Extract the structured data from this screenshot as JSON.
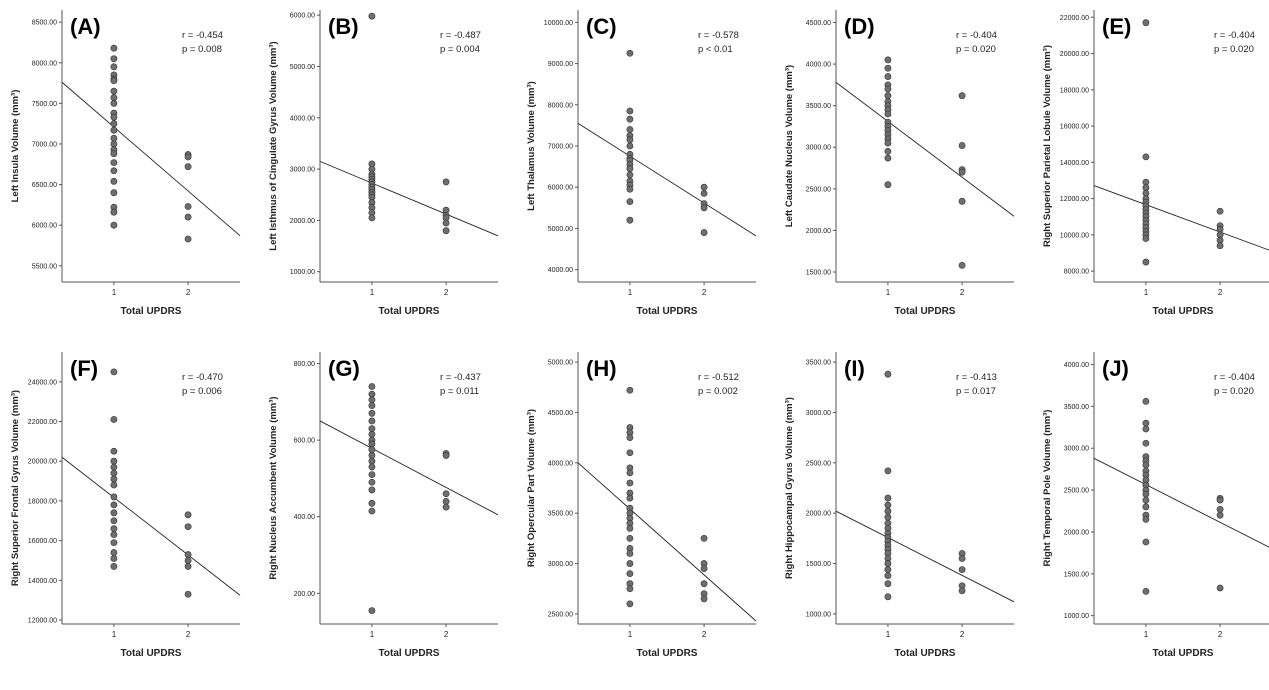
{
  "chart_data": [
    {
      "type": "scatter",
      "letter": "(A)",
      "ylabel": "Left Insula Volume (mm³)",
      "xlabel": "Total UPDRS",
      "r_text": "r = -0.454",
      "p_text": "p = 0.008",
      "x_ticks": [
        "1",
        "2"
      ],
      "x_range": [
        0.3,
        2.7
      ],
      "ylim": [
        5300,
        8650
      ],
      "y_ticks": [
        "5500.00",
        "6000.00",
        "6500.00",
        "7000.00",
        "7500.00",
        "8000.00",
        "8500.00"
      ],
      "fit": [
        [
          0.3,
          7760
        ],
        [
          2.7,
          5870
        ]
      ],
      "points": [
        [
          1,
          8180
        ],
        [
          1,
          8050
        ],
        [
          1,
          7950
        ],
        [
          1,
          7850
        ],
        [
          1,
          7800
        ],
        [
          1,
          7780
        ],
        [
          1,
          7650
        ],
        [
          1,
          7570
        ],
        [
          1,
          7500
        ],
        [
          1,
          7380
        ],
        [
          1,
          7330
        ],
        [
          1,
          7250
        ],
        [
          1,
          7170
        ],
        [
          1,
          7070
        ],
        [
          1,
          7000
        ],
        [
          1,
          6930
        ],
        [
          1,
          6880
        ],
        [
          1,
          6770
        ],
        [
          1,
          6670
        ],
        [
          1,
          6540
        ],
        [
          1,
          6400
        ],
        [
          1,
          6220
        ],
        [
          1,
          6160
        ],
        [
          1,
          6000
        ],
        [
          2,
          6870
        ],
        [
          2,
          6840
        ],
        [
          2,
          6720
        ],
        [
          2,
          6230
        ],
        [
          2,
          6100
        ],
        [
          2,
          5830
        ]
      ]
    },
    {
      "type": "scatter",
      "letter": "(B)",
      "ylabel": "Left Isthmus of Cingulate Gyrus Volume (mm³)",
      "xlabel": "Total UPDRS",
      "r_text": "r = -0.487",
      "p_text": "p = 0.004",
      "x_ticks": [
        "1",
        "2"
      ],
      "x_range": [
        0.3,
        2.7
      ],
      "ylim": [
        800,
        6100
      ],
      "y_ticks": [
        "1000.00",
        "2000.00",
        "3000.00",
        "4000.00",
        "5000.00",
        "6000.00"
      ],
      "fit": [
        [
          0.3,
          3150
        ],
        [
          2.7,
          1700
        ]
      ],
      "points": [
        [
          1,
          5980
        ],
        [
          1,
          3100
        ],
        [
          1,
          3000
        ],
        [
          1,
          2900
        ],
        [
          1,
          2850
        ],
        [
          1,
          2800
        ],
        [
          1,
          2750
        ],
        [
          1,
          2700
        ],
        [
          1,
          2650
        ],
        [
          1,
          2600
        ],
        [
          1,
          2550
        ],
        [
          1,
          2500
        ],
        [
          1,
          2450
        ],
        [
          1,
          2350
        ],
        [
          1,
          2250
        ],
        [
          1,
          2150
        ],
        [
          1,
          2050
        ],
        [
          2,
          2750
        ],
        [
          2,
          2200
        ],
        [
          2,
          2100
        ],
        [
          2,
          2050
        ],
        [
          2,
          1950
        ],
        [
          2,
          1800
        ]
      ]
    },
    {
      "type": "scatter",
      "letter": "(C)",
      "ylabel": "Left Thalamus Volume (mm³)",
      "xlabel": "Total UPDRS",
      "r_text": "r = -0.578",
      "p_text": "p < 0.01",
      "x_ticks": [
        "1",
        "2"
      ],
      "x_range": [
        0.3,
        2.7
      ],
      "ylim": [
        3700,
        10300
      ],
      "y_ticks": [
        "4000.00",
        "5000.00",
        "6000.00",
        "7000.00",
        "8000.00",
        "9000.00",
        "10000.00"
      ],
      "fit": [
        [
          0.3,
          7550
        ],
        [
          2.7,
          4820
        ]
      ],
      "points": [
        [
          1,
          9250
        ],
        [
          1,
          7850
        ],
        [
          1,
          7650
        ],
        [
          1,
          7400
        ],
        [
          1,
          7250
        ],
        [
          1,
          7150
        ],
        [
          1,
          7000
        ],
        [
          1,
          6800
        ],
        [
          1,
          6700
        ],
        [
          1,
          6650
        ],
        [
          1,
          6550
        ],
        [
          1,
          6450
        ],
        [
          1,
          6300
        ],
        [
          1,
          6150
        ],
        [
          1,
          6050
        ],
        [
          1,
          5950
        ],
        [
          1,
          5650
        ],
        [
          1,
          5200
        ],
        [
          2,
          6000
        ],
        [
          2,
          5850
        ],
        [
          2,
          5600
        ],
        [
          2,
          5500
        ],
        [
          2,
          4900
        ]
      ]
    },
    {
      "type": "scatter",
      "letter": "(D)",
      "ylabel": "Left Caudate Nucleus Volume (mm³)",
      "xlabel": "Total UPDRS",
      "r_text": "r = -0.404",
      "p_text": "p = 0.020",
      "x_ticks": [
        "1",
        "2"
      ],
      "x_range": [
        0.3,
        2.7
      ],
      "ylim": [
        1380,
        4650
      ],
      "y_ticks": [
        "1500.00",
        "2000.00",
        "2500.00",
        "3000.00",
        "3500.00",
        "4000.00",
        "4500.00"
      ],
      "fit": [
        [
          0.3,
          3780
        ],
        [
          2.7,
          2170
        ]
      ],
      "points": [
        [
          1,
          4050
        ],
        [
          1,
          3950
        ],
        [
          1,
          3850
        ],
        [
          1,
          3750
        ],
        [
          1,
          3700
        ],
        [
          1,
          3620
        ],
        [
          1,
          3550
        ],
        [
          1,
          3500
        ],
        [
          1,
          3450
        ],
        [
          1,
          3400
        ],
        [
          1,
          3300
        ],
        [
          1,
          3250
        ],
        [
          1,
          3200
        ],
        [
          1,
          3150
        ],
        [
          1,
          3100
        ],
        [
          1,
          3050
        ],
        [
          1,
          2950
        ],
        [
          1,
          2870
        ],
        [
          1,
          2550
        ],
        [
          2,
          3620
        ],
        [
          2,
          3020
        ],
        [
          2,
          2730
        ],
        [
          2,
          2700
        ],
        [
          2,
          2350
        ],
        [
          2,
          1580
        ]
      ]
    },
    {
      "type": "scatter",
      "letter": "(E)",
      "ylabel": "Right Superior Parietal Lobule Volume (mm³)",
      "xlabel": "Total UPDRS",
      "r_text": "r = -0.404",
      "p_text": "p = 0.020",
      "x_ticks": [
        "1",
        "2"
      ],
      "x_range": [
        0.3,
        2.7
      ],
      "ylim": [
        7400,
        22400
      ],
      "y_ticks": [
        "8000.00",
        "10000.00",
        "12000.00",
        "14000.00",
        "16000.00",
        "18000.00",
        "20000.00",
        "22000.00"
      ],
      "fit": [
        [
          0.3,
          12720
        ],
        [
          2.7,
          9100
        ]
      ],
      "points": [
        [
          1,
          21700
        ],
        [
          1,
          14300
        ],
        [
          1,
          12900
        ],
        [
          1,
          12600
        ],
        [
          1,
          12300
        ],
        [
          1,
          12000
        ],
        [
          1,
          11800
        ],
        [
          1,
          11600
        ],
        [
          1,
          11400
        ],
        [
          1,
          11200
        ],
        [
          1,
          11000
        ],
        [
          1,
          10800
        ],
        [
          1,
          10600
        ],
        [
          1,
          10400
        ],
        [
          1,
          10200
        ],
        [
          1,
          10000
        ],
        [
          1,
          9800
        ],
        [
          1,
          8500
        ],
        [
          2,
          11300
        ],
        [
          2,
          10500
        ],
        [
          2,
          10300
        ],
        [
          2,
          10000
        ],
        [
          2,
          9700
        ],
        [
          2,
          9400
        ]
      ]
    },
    {
      "type": "scatter",
      "letter": "(F)",
      "ylabel": "Right Superior Frontal Gyrus Volume (mm³)",
      "xlabel": "Total UPDRS",
      "r_text": "r = -0.470",
      "p_text": "p = 0.006",
      "x_ticks": [
        "1",
        "2"
      ],
      "x_range": [
        0.3,
        2.7
      ],
      "ylim": [
        11800,
        25500
      ],
      "y_ticks": [
        "12000.00",
        "14000.00",
        "16000.00",
        "18000.00",
        "20000.00",
        "22000.00",
        "24000.00"
      ],
      "fit": [
        [
          0.3,
          20200
        ],
        [
          2.7,
          13250
        ]
      ],
      "points": [
        [
          1,
          24500
        ],
        [
          1,
          22100
        ],
        [
          1,
          20500
        ],
        [
          1,
          20000
        ],
        [
          1,
          19700
        ],
        [
          1,
          19400
        ],
        [
          1,
          19100
        ],
        [
          1,
          18800
        ],
        [
          1,
          18200
        ],
        [
          1,
          17800
        ],
        [
          1,
          17400
        ],
        [
          1,
          17000
        ],
        [
          1,
          16600
        ],
        [
          1,
          16300
        ],
        [
          1,
          15900
        ],
        [
          1,
          15400
        ],
        [
          1,
          15100
        ],
        [
          1,
          14700
        ],
        [
          2,
          17300
        ],
        [
          2,
          16700
        ],
        [
          2,
          15300
        ],
        [
          2,
          15000
        ],
        [
          2,
          14700
        ],
        [
          2,
          13300
        ]
      ]
    },
    {
      "type": "scatter",
      "letter": "(G)",
      "ylabel": "Right Nucleus Accumbent Volume (mm³)",
      "xlabel": "Total UPDRS",
      "r_text": "r = -0.437",
      "p_text": "p = 0.011",
      "x_ticks": [
        "1",
        "2"
      ],
      "x_range": [
        0.3,
        2.7
      ],
      "ylim": [
        120,
        830
      ],
      "y_ticks": [
        "200.00",
        "400.00",
        "600.00",
        "800.00"
      ],
      "fit": [
        [
          0.3,
          650
        ],
        [
          2.7,
          405
        ]
      ],
      "points": [
        [
          1,
          740
        ],
        [
          1,
          720
        ],
        [
          1,
          705
        ],
        [
          1,
          690
        ],
        [
          1,
          670
        ],
        [
          1,
          650
        ],
        [
          1,
          630
        ],
        [
          1,
          615
        ],
        [
          1,
          600
        ],
        [
          1,
          590
        ],
        [
          1,
          575
        ],
        [
          1,
          560
        ],
        [
          1,
          545
        ],
        [
          1,
          530
        ],
        [
          1,
          510
        ],
        [
          1,
          490
        ],
        [
          1,
          470
        ],
        [
          1,
          435
        ],
        [
          1,
          415
        ],
        [
          1,
          155
        ],
        [
          2,
          565
        ],
        [
          2,
          560
        ],
        [
          2,
          460
        ],
        [
          2,
          440
        ],
        [
          2,
          425
        ]
      ]
    },
    {
      "type": "scatter",
      "letter": "(H)",
      "ylabel": "Right Opercular Part Volume (mm³)",
      "xlabel": "Total UPDRS",
      "r_text": "r = -0.512",
      "p_text": "p = 0.002",
      "x_ticks": [
        "1",
        "2"
      ],
      "x_range": [
        0.3,
        2.7
      ],
      "ylim": [
        2400,
        5100
      ],
      "y_ticks": [
        "2500.00",
        "3000.00",
        "3500.00",
        "4000.00",
        "4500.00",
        "5000.00"
      ],
      "fit": [
        [
          0.3,
          4000
        ],
        [
          2.7,
          2430
        ]
      ],
      "points": [
        [
          1,
          4720
        ],
        [
          1,
          4350
        ],
        [
          1,
          4300
        ],
        [
          1,
          4250
        ],
        [
          1,
          4100
        ],
        [
          1,
          3950
        ],
        [
          1,
          3900
        ],
        [
          1,
          3800
        ],
        [
          1,
          3700
        ],
        [
          1,
          3650
        ],
        [
          1,
          3550
        ],
        [
          1,
          3500
        ],
        [
          1,
          3450
        ],
        [
          1,
          3400
        ],
        [
          1,
          3350
        ],
        [
          1,
          3250
        ],
        [
          1,
          3150
        ],
        [
          1,
          3100
        ],
        [
          1,
          3000
        ],
        [
          1,
          2900
        ],
        [
          1,
          2800
        ],
        [
          1,
          2750
        ],
        [
          1,
          2600
        ],
        [
          2,
          3250
        ],
        [
          2,
          3000
        ],
        [
          2,
          2950
        ],
        [
          2,
          2800
        ],
        [
          2,
          2700
        ],
        [
          2,
          2650
        ]
      ]
    },
    {
      "type": "scatter",
      "letter": "(I)",
      "ylabel": "Right Hippocampal Gyrus Volume (mm³)",
      "xlabel": "Total UPDRS",
      "r_text": "r = -0.413",
      "p_text": "p = 0.017",
      "x_ticks": [
        "1",
        "2"
      ],
      "x_range": [
        0.3,
        2.7
      ],
      "ylim": [
        900,
        3600
      ],
      "y_ticks": [
        "1000.00",
        "1500.00",
        "2000.00",
        "2500.00",
        "3000.00",
        "3500.00"
      ],
      "fit": [
        [
          0.3,
          2020
        ],
        [
          2.7,
          1120
        ]
      ],
      "points": [
        [
          1,
          3380
        ],
        [
          1,
          2420
        ],
        [
          1,
          2150
        ],
        [
          1,
          2080
        ],
        [
          1,
          2020
        ],
        [
          1,
          1960
        ],
        [
          1,
          1900
        ],
        [
          1,
          1850
        ],
        [
          1,
          1800
        ],
        [
          1,
          1760
        ],
        [
          1,
          1720
        ],
        [
          1,
          1680
        ],
        [
          1,
          1640
        ],
        [
          1,
          1600
        ],
        [
          1,
          1550
        ],
        [
          1,
          1500
        ],
        [
          1,
          1440
        ],
        [
          1,
          1380
        ],
        [
          1,
          1300
        ],
        [
          1,
          1170
        ],
        [
          2,
          1600
        ],
        [
          2,
          1550
        ],
        [
          2,
          1440
        ],
        [
          2,
          1280
        ],
        [
          2,
          1230
        ]
      ]
    },
    {
      "type": "scatter",
      "letter": "(J)",
      "ylabel": "Right Temporal Pole Volume (mm³)",
      "xlabel": "Total UPDRS",
      "r_text": "r = -0.404",
      "p_text": "p = 0.020",
      "x_ticks": [
        "1",
        "2"
      ],
      "x_range": [
        0.3,
        2.7
      ],
      "ylim": [
        900,
        4150
      ],
      "y_ticks": [
        "1000.00",
        "1500.00",
        "2000.00",
        "2500.00",
        "3000.00",
        "3500.00",
        "4000.00"
      ],
      "fit": [
        [
          0.3,
          2880
        ],
        [
          2.7,
          1800
        ]
      ],
      "points": [
        [
          1,
          3560
        ],
        [
          1,
          3300
        ],
        [
          1,
          3230
        ],
        [
          1,
          3060
        ],
        [
          1,
          2900
        ],
        [
          1,
          2850
        ],
        [
          1,
          2800
        ],
        [
          1,
          2730
        ],
        [
          1,
          2680
        ],
        [
          1,
          2620
        ],
        [
          1,
          2560
        ],
        [
          1,
          2500
        ],
        [
          1,
          2450
        ],
        [
          1,
          2380
        ],
        [
          1,
          2300
        ],
        [
          1,
          2200
        ],
        [
          1,
          2150
        ],
        [
          1,
          1880
        ],
        [
          1,
          1290
        ],
        [
          2,
          2400
        ],
        [
          2,
          2380
        ],
        [
          2,
          2270
        ],
        [
          2,
          2200
        ],
        [
          2,
          1330
        ]
      ]
    }
  ]
}
